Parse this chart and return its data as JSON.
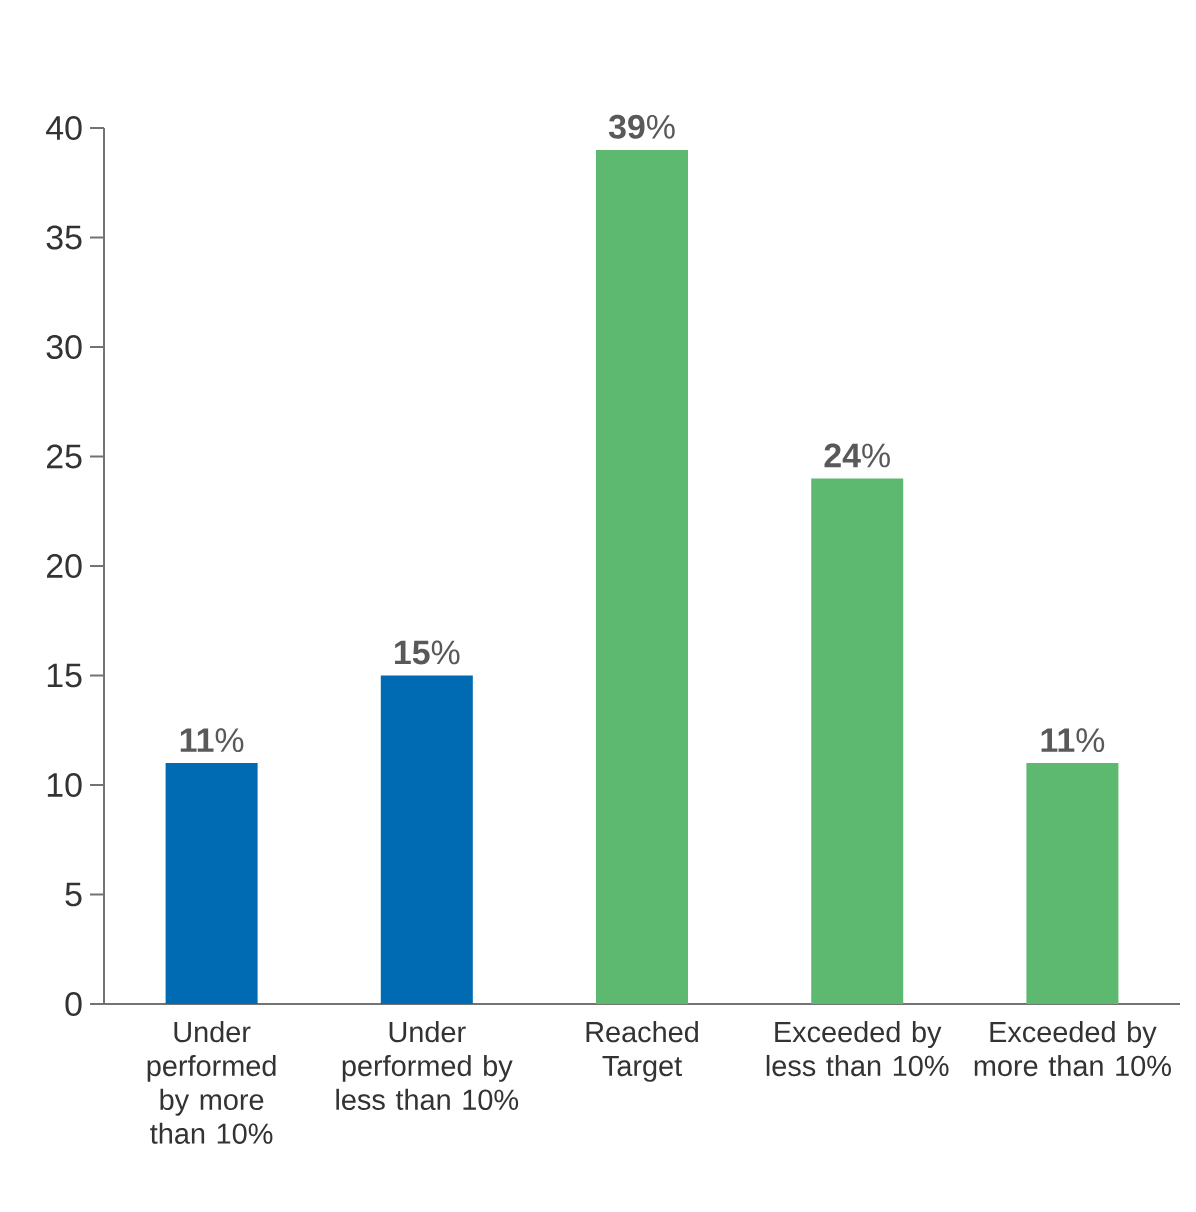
{
  "chart_data": {
    "type": "bar",
    "categories": [
      "Under performed by more than 10%",
      "Under performed by less than 10%",
      "Reached Target",
      "Exceeded by less than 10%",
      "Exceeded by more than 10%"
    ],
    "values": [
      11,
      15,
      39,
      24,
      11
    ],
    "colors": [
      "#006ab3",
      "#006ab3",
      "#5db870",
      "#5db870",
      "#5db870"
    ],
    "value_labels": [
      "**11**%",
      "**15**%",
      "**39**%",
      "**24**%",
      "**11**%"
    ],
    "ylim": [
      0,
      40
    ],
    "yticks": [
      0,
      5,
      10,
      15,
      20,
      25,
      30,
      35,
      40
    ]
  }
}
